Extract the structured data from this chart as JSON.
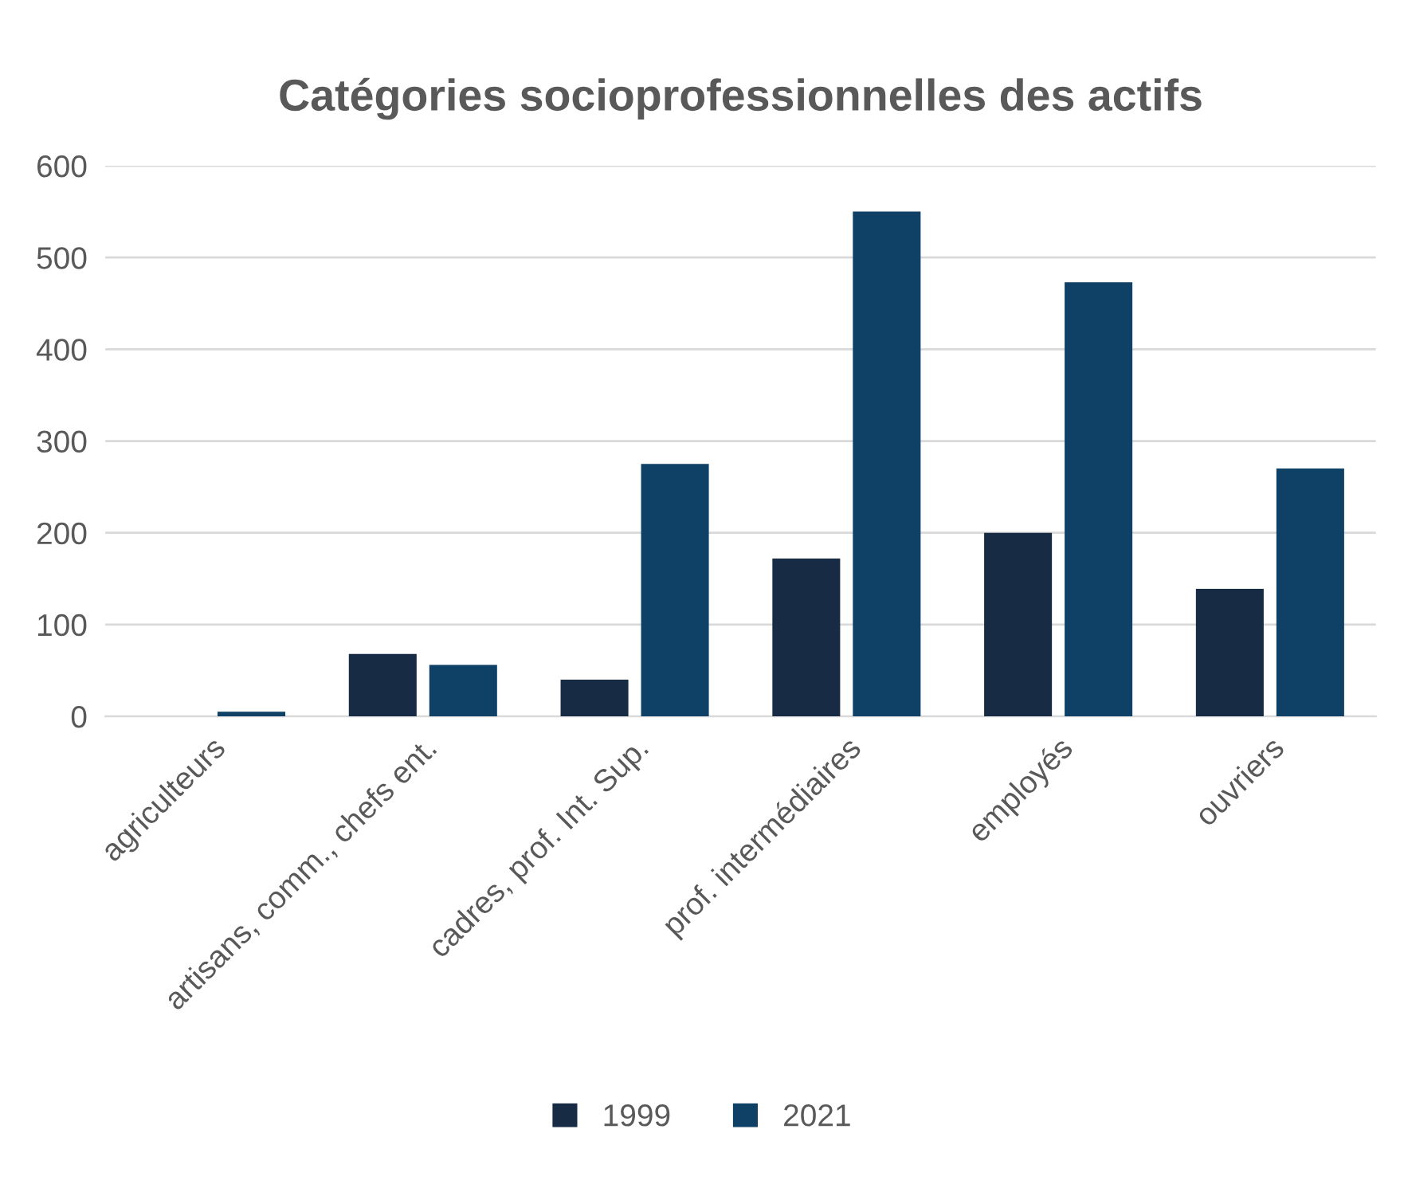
{
  "chart_data": {
    "type": "bar",
    "title": "Catégories socioprofessionnelles des actifs",
    "categories": [
      "agriculteurs",
      "artisans, comm., chefs ent.",
      "cadres, prof. Int. Sup.",
      "prof. intermédiaires",
      "employés",
      "ouvriers"
    ],
    "series": [
      {
        "name": "1999",
        "color": "#172b45",
        "values": [
          0,
          68,
          40,
          172,
          200,
          139
        ]
      },
      {
        "name": "2021",
        "color": "#0f4166",
        "values": [
          5,
          56,
          275,
          550,
          473,
          270
        ]
      }
    ],
    "ylim": [
      0,
      600
    ],
    "yticks": [
      0,
      100,
      200,
      300,
      400,
      500,
      600
    ],
    "grid": "y",
    "legend": "bottom"
  }
}
